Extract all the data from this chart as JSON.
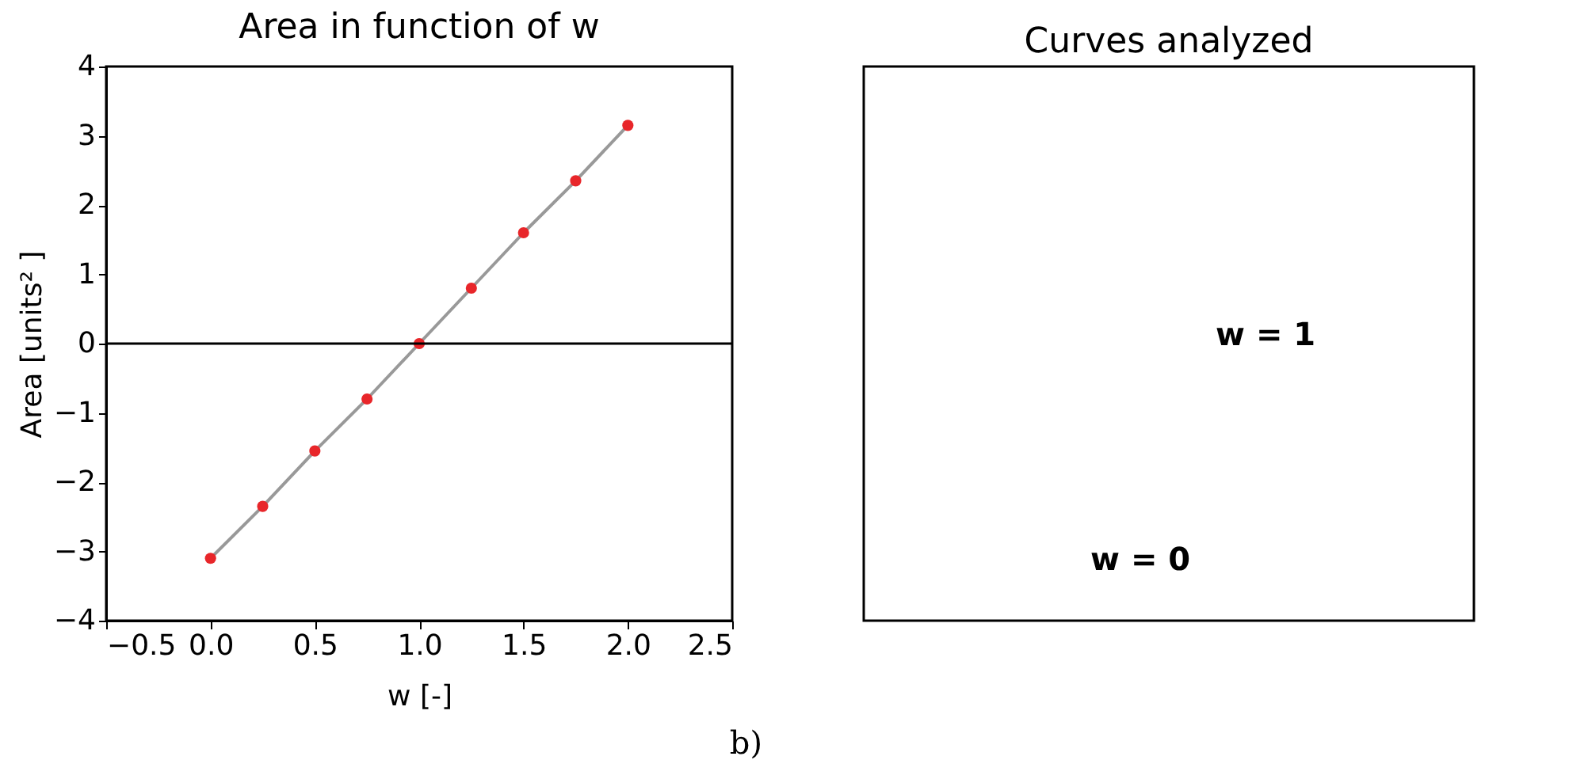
{
  "chart_data": [
    {
      "type": "line",
      "title": "Area in function of w",
      "xlabel": "w [-]",
      "ylabel": "Area [units² ]",
      "x": [
        0,
        0.25,
        0.5,
        0.75,
        1,
        1.25,
        1.5,
        1.75,
        2
      ],
      "series": [
        {
          "type": "line",
          "color": "#999999",
          "marker": "none",
          "values": [
            -3.1,
            -2.35,
            -1.55,
            -0.8,
            0,
            0.8,
            1.6,
            2.35,
            3.15
          ]
        },
        {
          "type": "scatter",
          "color": "#e8262a",
          "marker": "circle",
          "values": [
            -3.1,
            -2.35,
            -1.55,
            -0.8,
            0,
            0.8,
            1.6,
            2.35,
            3.15
          ]
        }
      ],
      "xlim": [
        -0.5,
        2.5
      ],
      "xticks": [
        -0.5,
        {
          "value": 0,
          "label": "0.0"
        },
        0.5,
        {
          "value": 1,
          "label": "1.0"
        },
        1.5,
        {
          "value": 2,
          "label": "2.0"
        },
        2.5
      ],
      "ylim": [
        -4,
        4
      ],
      "yticks": [
        -4,
        -3,
        -2,
        -1,
        0,
        1,
        2,
        3,
        4
      ],
      "ref_lines": [
        {
          "axis": "y",
          "value": 0,
          "color": "#000000"
        }
      ],
      "annotations": [
        "b)"
      ]
    },
    {
      "type": "other",
      "title": "Curves analyzed",
      "annotations": [
        "w = 1",
        "w = 0"
      ]
    }
  ]
}
